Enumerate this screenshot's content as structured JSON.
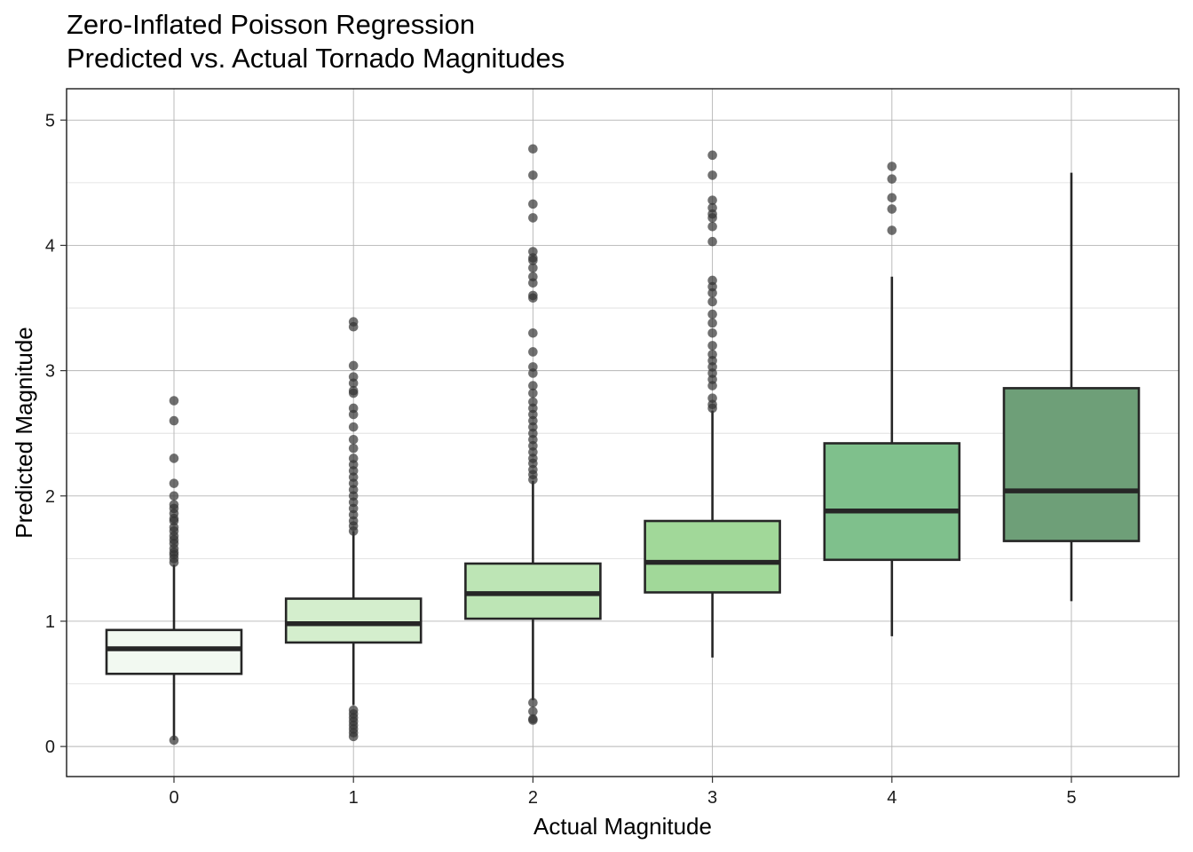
{
  "chart_data": {
    "type": "boxplot",
    "title": "Zero-Inflated Poisson Regression",
    "subtitle": "Predicted vs. Actual Tornado Magnitudes",
    "xlabel": "Actual Magnitude",
    "ylabel": "Predicted Magnitude",
    "ylim": [
      -0.24,
      5.25
    ],
    "yticks": [
      0,
      1,
      2,
      3,
      4,
      5
    ],
    "grid": true,
    "legend": "none",
    "categories": [
      "0",
      "1",
      "2",
      "3",
      "4",
      "5"
    ],
    "boxes": [
      {
        "category": "0",
        "q1": 0.58,
        "median": 0.78,
        "q3": 0.93,
        "whisker_low": 0.05,
        "whisker_high": 1.45,
        "color": "#f2f9f1",
        "outliers": [
          0.05,
          1.47,
          1.5,
          1.53,
          1.55,
          1.58,
          1.62,
          1.65,
          1.68,
          1.72,
          1.75,
          1.8,
          1.82,
          1.86,
          1.9,
          1.93,
          2.0,
          2.1,
          2.3,
          2.6,
          2.76
        ]
      },
      {
        "category": "1",
        "q1": 0.83,
        "median": 0.98,
        "q3": 1.18,
        "whisker_low": 0.33,
        "whisker_high": 1.72,
        "color": "#d4eecd",
        "outliers": [
          0.08,
          0.11,
          0.14,
          0.17,
          0.2,
          0.23,
          0.26,
          0.29,
          1.72,
          1.76,
          1.8,
          1.85,
          1.9,
          1.95,
          2.0,
          2.05,
          2.1,
          2.15,
          2.2,
          2.25,
          2.3,
          2.38,
          2.45,
          2.55,
          2.65,
          2.7,
          2.82,
          2.84,
          2.9,
          2.95,
          3.04,
          3.35,
          3.39
        ]
      },
      {
        "category": "2",
        "q1": 1.02,
        "median": 1.22,
        "q3": 1.46,
        "whisker_low": 0.37,
        "whisker_high": 2.12,
        "color": "#bde5b5",
        "outliers": [
          0.21,
          0.22,
          0.28,
          0.35,
          2.13,
          2.17,
          2.21,
          2.26,
          2.3,
          2.35,
          2.4,
          2.45,
          2.5,
          2.55,
          2.6,
          2.65,
          2.7,
          2.75,
          2.82,
          2.88,
          2.98,
          3.03,
          3.15,
          3.3,
          3.58,
          3.6,
          3.7,
          3.75,
          3.82,
          3.88,
          3.9,
          3.95,
          4.22,
          4.33,
          4.56,
          4.77
        ]
      },
      {
        "category": "3",
        "q1": 1.23,
        "median": 1.47,
        "q3": 1.8,
        "whisker_low": 0.71,
        "whisker_high": 2.68,
        "color": "#a1d899",
        "outliers": [
          2.7,
          2.73,
          2.78,
          2.88,
          2.93,
          2.98,
          3.03,
          3.08,
          3.13,
          3.2,
          3.3,
          3.38,
          3.45,
          3.55,
          3.62,
          3.67,
          3.72,
          4.03,
          4.15,
          4.22,
          4.25,
          4.3,
          4.36,
          4.56,
          4.72
        ]
      },
      {
        "category": "4",
        "q1": 1.49,
        "median": 1.88,
        "q3": 2.42,
        "whisker_low": 0.88,
        "whisker_high": 3.75,
        "color": "#7fc08c",
        "outliers": [
          4.12,
          4.29,
          4.38,
          4.53,
          4.63
        ]
      },
      {
        "category": "5",
        "q1": 1.64,
        "median": 2.04,
        "q3": 2.86,
        "whisker_low": 1.16,
        "whisker_high": 4.58,
        "color": "#6e9f78",
        "outliers": []
      }
    ],
    "outlier_color": "#333333",
    "box_edge_color": "#262626"
  }
}
